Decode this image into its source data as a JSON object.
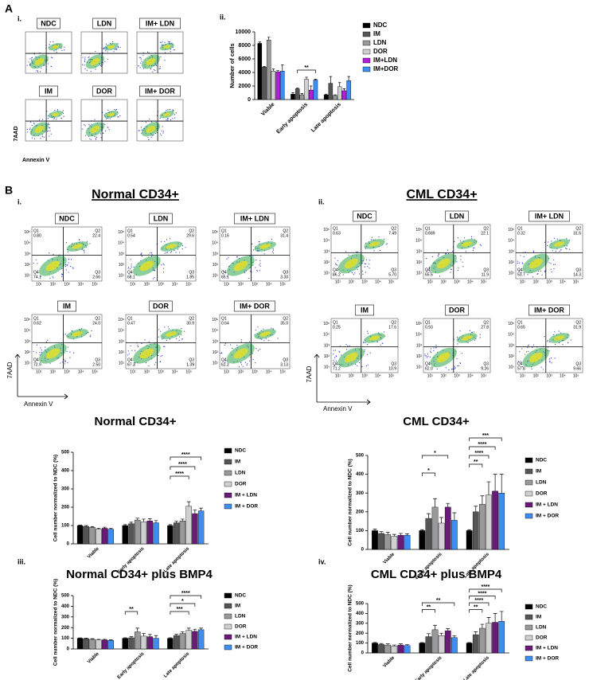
{
  "figure": {
    "panel_a": {
      "label": "A",
      "sub_i": "i.",
      "sub_ii": "ii.",
      "y_axis": "7AAD",
      "x_axis": "Annexin V",
      "flow_plots": [
        "NDC",
        "LDN",
        "IM+ LDN",
        "IM",
        "DOR",
        "IM+ DOR"
      ]
    },
    "panel_b": {
      "label": "B",
      "sub_i": "i.",
      "sub_ii": "ii.",
      "sub_iii": "iii.",
      "sub_iv": "iv.",
      "axis_ticks": [
        "10¹",
        "10²",
        "10³",
        "10⁴",
        "10⁵"
      ],
      "groups": [
        {
          "title": "Normal CD34+",
          "y_axis": "7AAD",
          "x_axis": "Annexin V",
          "plots": [
            {
              "label": "NDC",
              "quadrants": [
                [
                  "Q1",
                  "0.80"
                ],
                [
                  "Q2",
                  "22.4"
                ],
                [
                  "Q4",
                  "74.1"
                ],
                [
                  "Q3",
                  "2.66"
                ]
              ]
            },
            {
              "label": "LDN",
              "quadrants": [
                [
                  "Q1",
                  "0.54"
                ],
                [
                  "Q2",
                  "29.6"
                ],
                [
                  "Q4",
                  "68.1"
                ],
                [
                  "Q3",
                  "1.85"
                ]
              ]
            },
            {
              "label": "IM+ LDN",
              "quadrants": [
                [
                  "Q1",
                  "0.16"
                ],
                [
                  "Q2",
                  "31.4"
                ],
                [
                  "Q4",
                  "65.1"
                ],
                [
                  "Q3",
                  "3.30"
                ]
              ]
            },
            {
              "label": "IM",
              "quadrants": [
                [
                  "Q1",
                  "0.62"
                ],
                [
                  "Q2",
                  "24.0"
                ],
                [
                  "Q4",
                  "72.9"
                ],
                [
                  "Q3",
                  "2.50"
                ]
              ]
            },
            {
              "label": "DOR",
              "quadrants": [
                [
                  "Q1",
                  "0.47"
                ],
                [
                  "Q2",
                  "30.9"
                ],
                [
                  "Q4",
                  "67.3"
                ],
                [
                  "Q3",
                  "1.39"
                ]
              ]
            },
            {
              "label": "IM+ DOR",
              "quadrants": [
                [
                  "Q1",
                  "0.64"
                ],
                [
                  "Q2",
                  "35.0"
                ],
                [
                  "Q4",
                  "61.2"
                ],
                [
                  "Q3",
                  "3.13"
                ]
              ]
            }
          ]
        },
        {
          "title": "CML CD34+",
          "y_axis": "7AAD",
          "x_axis": "Annexin V",
          "plots": [
            {
              "label": "NDC",
              "quadrants": [
                [
                  "Q1",
                  "0.63"
                ],
                [
                  "Q2",
                  "7.49"
                ],
                [
                  "Q4",
                  "86.2"
                ],
                [
                  "Q3",
                  "5.70"
                ]
              ]
            },
            {
              "label": "LDN",
              "quadrants": [
                [
                  "Q1",
                  "0.689"
                ],
                [
                  "Q2",
                  "22.1"
                ],
                [
                  "Q4",
                  "65.5"
                ],
                [
                  "Q3",
                  "11.9"
                ]
              ]
            },
            {
              "label": "IM+ LDN",
              "quadrants": [
                [
                  "Q1",
                  "0.32"
                ],
                [
                  "Q2",
                  "31.6"
                ],
                [
                  "Q4",
                  "53.7"
                ],
                [
                  "Q3",
                  "14.3"
                ]
              ]
            },
            {
              "label": "IM",
              "quadrants": [
                [
                  "Q1",
                  "0.25"
                ],
                [
                  "Q2",
                  "17.6"
                ],
                [
                  "Q4",
                  "71.2"
                ],
                [
                  "Q3",
                  "10.9"
                ]
              ]
            },
            {
              "label": "DOR",
              "quadrants": [
                [
                  "Q1",
                  "0.93"
                ],
                [
                  "Q2",
                  "27.8"
                ],
                [
                  "Q4",
                  "62.0"
                ],
                [
                  "Q3",
                  "9.26"
                ]
              ]
            },
            {
              "label": "IM+ DOR",
              "quadrants": [
                [
                  "Q1",
                  "0.65"
                ],
                [
                  "Q2",
                  "31.9"
                ],
                [
                  "Q4",
                  "57.8"
                ],
                [
                  "Q3",
                  "9.66"
                ]
              ]
            }
          ]
        }
      ]
    }
  },
  "chart_data": [
    {
      "type": "bar",
      "y_label": "Number of cells",
      "categories": [
        "Viable",
        "Early apoptosis",
        "Late apoptosis"
      ],
      "ylim": [
        0,
        10000
      ],
      "yticks": [
        0,
        2000,
        4000,
        6000,
        8000,
        10000
      ],
      "annotations": [
        "**"
      ],
      "series": [
        {
          "name": "NDC",
          "color": "#000000",
          "values": [
            8300,
            800,
            700
          ],
          "errors": [
            200,
            200,
            100
          ]
        },
        {
          "name": "IM",
          "color": "#555555",
          "values": [
            4800,
            1600,
            2400
          ],
          "errors": [
            100,
            100,
            1000
          ]
        },
        {
          "name": "LDN",
          "color": "#999999",
          "values": [
            8800,
            700,
            600
          ],
          "errors": [
            400,
            200,
            100
          ]
        },
        {
          "name": "DOR",
          "color": "#d0d0d0",
          "values": [
            4200,
            3000,
            1900
          ],
          "errors": [
            300,
            300,
            600
          ]
        },
        {
          "name": "IM+LDN",
          "color": "#b21fd6",
          "values": [
            4100,
            1400,
            1300
          ],
          "errors": [
            200,
            600,
            300
          ]
        },
        {
          "name": "IM+DOR",
          "color": "#3d8ef0",
          "values": [
            4200,
            2900,
            2800
          ],
          "errors": [
            900,
            100,
            600
          ]
        }
      ]
    },
    {
      "type": "bar",
      "title": "Normal CD34+",
      "y_label": "Cell number normalized to NDC (%)",
      "categories": [
        "Viable",
        "Early apoptosis",
        "Late apoptosis"
      ],
      "ylim": [
        0,
        500
      ],
      "yticks": [
        0,
        100,
        200,
        300,
        400,
        500
      ],
      "annotations": [
        "****",
        "****",
        "****"
      ],
      "series": [
        {
          "name": "NDC",
          "color": "#000000",
          "values": [
            100,
            100,
            100
          ],
          "errors": [
            3,
            5,
            5
          ]
        },
        {
          "name": "IM",
          "color": "#555555",
          "values": [
            95,
            110,
            115
          ],
          "errors": [
            5,
            8,
            8
          ]
        },
        {
          "name": "LDN",
          "color": "#999999",
          "values": [
            90,
            130,
            125
          ],
          "errors": [
            4,
            10,
            10
          ]
        },
        {
          "name": "DOR",
          "color": "#d0d0d0",
          "values": [
            80,
            120,
            205
          ],
          "errors": [
            5,
            15,
            25
          ]
        },
        {
          "name": "IM + LDN",
          "color": "#6a1b7a",
          "values": [
            85,
            125,
            165
          ],
          "errors": [
            6,
            12,
            20
          ]
        },
        {
          "name": "IM + DOR",
          "color": "#3d8ef0",
          "values": [
            80,
            115,
            180
          ],
          "errors": [
            5,
            12,
            15
          ]
        }
      ]
    },
    {
      "type": "bar",
      "title": "CML CD34+",
      "y_label": "Cell number normalized to NDC (%)",
      "categories": [
        "Viable",
        "Early apoptosis",
        "Late apoptosis"
      ],
      "ylim": [
        0,
        500
      ],
      "yticks": [
        0,
        100,
        200,
        300,
        400,
        500
      ],
      "annotations": [
        "*",
        "*",
        "***",
        "****",
        "****",
        "**"
      ],
      "series": [
        {
          "name": "NDC",
          "color": "#000000",
          "values": [
            100,
            100,
            100
          ],
          "errors": [
            8,
            5,
            5
          ]
        },
        {
          "name": "IM",
          "color": "#555555",
          "values": [
            85,
            165,
            200
          ],
          "errors": [
            10,
            25,
            30
          ]
        },
        {
          "name": "LDN",
          "color": "#999999",
          "values": [
            80,
            225,
            240
          ],
          "errors": [
            12,
            45,
            45
          ]
        },
        {
          "name": "DOR",
          "color": "#d0d0d0",
          "values": [
            70,
            140,
            290
          ],
          "errors": [
            10,
            30,
            70
          ]
        },
        {
          "name": "IM + LDN",
          "color": "#6a1b7a",
          "values": [
            75,
            225,
            310
          ],
          "errors": [
            10,
            20,
            90
          ]
        },
        {
          "name": "IM + DOR",
          "color": "#3d8ef0",
          "values": [
            75,
            155,
            300
          ],
          "errors": [
            8,
            40,
            100
          ]
        }
      ]
    },
    {
      "type": "bar",
      "title": "Normal CD34+ plus BMP4",
      "y_label": "Cell number normalized to NDC (%)",
      "categories": [
        "Viable",
        "Early apoptosis",
        "Late apoptosis"
      ],
      "ylim": [
        0,
        500
      ],
      "yticks": [
        0,
        100,
        200,
        300,
        400,
        500
      ],
      "annotations": [
        "**",
        "****",
        "*",
        "***"
      ],
      "series": [
        {
          "name": "NDC",
          "color": "#000000",
          "values": [
            100,
            100,
            100
          ],
          "errors": [
            4,
            5,
            5
          ]
        },
        {
          "name": "IM",
          "color": "#555555",
          "values": [
            95,
            105,
            125
          ],
          "errors": [
            6,
            10,
            12
          ]
        },
        {
          "name": "LDN",
          "color": "#999999",
          "values": [
            90,
            160,
            145
          ],
          "errors": [
            6,
            35,
            15
          ]
        },
        {
          "name": "DOR",
          "color": "#d0d0d0",
          "values": [
            85,
            120,
            175
          ],
          "errors": [
            5,
            25,
            20
          ]
        },
        {
          "name": "IM + LDN",
          "color": "#6a1b7a",
          "values": [
            85,
            115,
            165
          ],
          "errors": [
            5,
            20,
            20
          ]
        },
        {
          "name": "IM + DOR",
          "color": "#3d8ef0",
          "values": [
            80,
            100,
            180
          ],
          "errors": [
            5,
            25,
            15
          ]
        }
      ]
    },
    {
      "type": "bar",
      "title": "CML CD34+ plus BMP4",
      "y_label": "Cell number normalized to NDC (%)",
      "categories": [
        "Viable",
        "Early apoptosis",
        "Late apoptosis"
      ],
      "ylim": [
        0,
        500
      ],
      "yticks": [
        0,
        100,
        200,
        300,
        400,
        500
      ],
      "annotations": [
        "**",
        "**",
        "****",
        "****",
        "****",
        "**"
      ],
      "series": [
        {
          "name": "NDC",
          "color": "#000000",
          "values": [
            100,
            100,
            100
          ],
          "errors": [
            6,
            5,
            5
          ]
        },
        {
          "name": "IM",
          "color": "#555555",
          "values": [
            85,
            165,
            185
          ],
          "errors": [
            10,
            30,
            30
          ]
        },
        {
          "name": "LDN",
          "color": "#999999",
          "values": [
            80,
            235,
            250
          ],
          "errors": [
            12,
            45,
            40
          ]
        },
        {
          "name": "DOR",
          "color": "#d0d0d0",
          "values": [
            70,
            175,
            300
          ],
          "errors": [
            10,
            25,
            60
          ]
        },
        {
          "name": "IM + LDN",
          "color": "#6a1b7a",
          "values": [
            80,
            225,
            310
          ],
          "errors": [
            12,
            20,
            90
          ]
        },
        {
          "name": "IM + DOR",
          "color": "#3d8ef0",
          "values": [
            75,
            155,
            320
          ],
          "errors": [
            8,
            20,
            100
          ]
        }
      ]
    }
  ]
}
